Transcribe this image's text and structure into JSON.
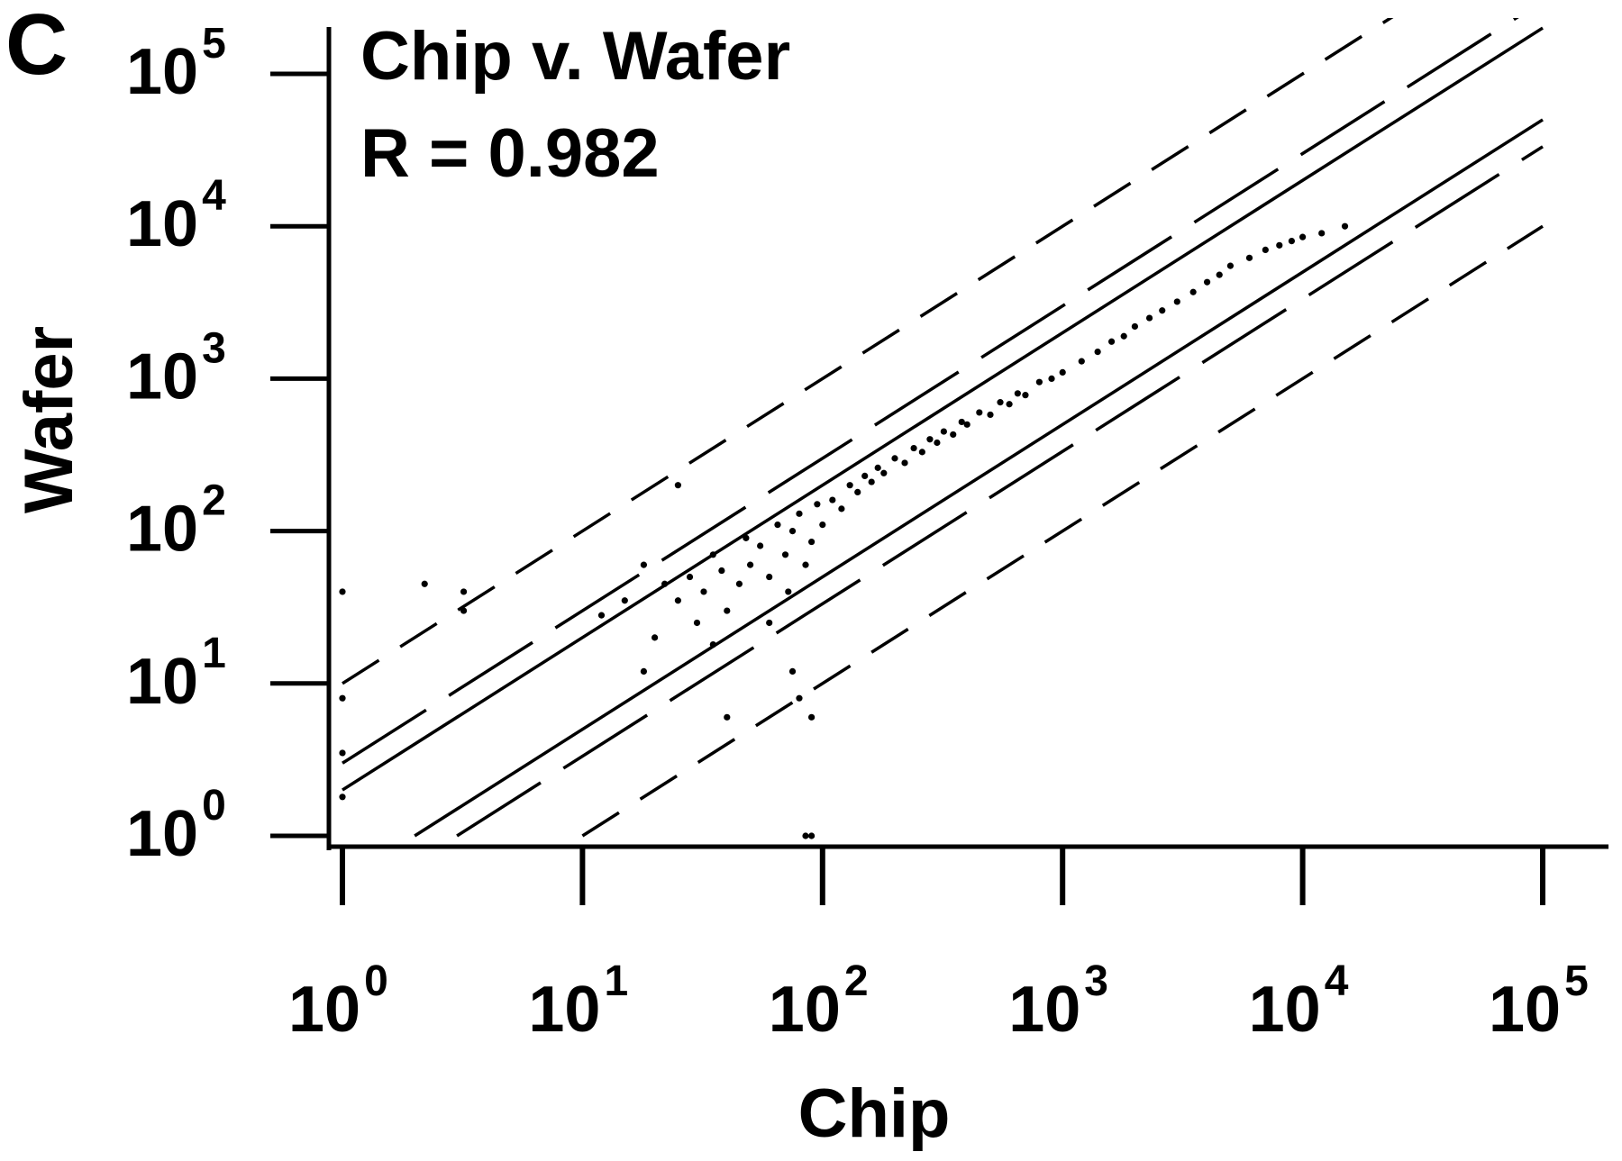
{
  "panel_label": "C",
  "chart_data": {
    "type": "scatter",
    "title": "Chip v. Wafer",
    "annotation": "R = 0.982",
    "xlabel": "Chip",
    "ylabel": "Wafer",
    "xscale": "log",
    "yscale": "log",
    "xlim": [
      1,
      100000
    ],
    "ylim": [
      1,
      100000
    ],
    "grid": false,
    "ticks": [
      {
        "base": "10",
        "exp": "0",
        "value": 1
      },
      {
        "base": "10",
        "exp": "1",
        "value": 10
      },
      {
        "base": "10",
        "exp": "2",
        "value": 100
      },
      {
        "base": "10",
        "exp": "3",
        "value": 1000
      },
      {
        "base": "10",
        "exp": "4",
        "value": 10000
      },
      {
        "base": "10",
        "exp": "5",
        "value": 100000
      }
    ],
    "reference_lines": [
      {
        "style": "solid",
        "fold": 2,
        "x": [
          1,
          100000
        ],
        "y": [
          2,
          200000
        ]
      },
      {
        "style": "solid",
        "fold": 0.5,
        "x": [
          2,
          100000
        ],
        "y": [
          1,
          50000
        ]
      },
      {
        "style": "long-dash",
        "fold": 3,
        "x": [
          1,
          100000
        ],
        "y": [
          3,
          300000
        ]
      },
      {
        "style": "long-dash",
        "fold": 0.333,
        "x": [
          3,
          100000
        ],
        "y": [
          1,
          33300
        ]
      },
      {
        "style": "short-dash",
        "fold": 10,
        "x": [
          1,
          100000
        ],
        "y": [
          10,
          1000000
        ]
      },
      {
        "style": "short-dash",
        "fold": 0.1,
        "x": [
          10,
          100000
        ],
        "y": [
          1,
          10000
        ]
      }
    ],
    "series": [
      {
        "points": [
          [
            1.0,
            40
          ],
          [
            1.0,
            3.5
          ],
          [
            1.0,
            1.8
          ],
          [
            1.0,
            8
          ],
          [
            2.2,
            45
          ],
          [
            3.2,
            40
          ],
          [
            3.2,
            30
          ],
          [
            12,
            28
          ],
          [
            15,
            35
          ],
          [
            18,
            60
          ],
          [
            18,
            12
          ],
          [
            20,
            20
          ],
          [
            22,
            45
          ],
          [
            25,
            35
          ],
          [
            25,
            200
          ],
          [
            28,
            50
          ],
          [
            30,
            25
          ],
          [
            32,
            40
          ],
          [
            35,
            18
          ],
          [
            35,
            70
          ],
          [
            38,
            55
          ],
          [
            40,
            30
          ],
          [
            40,
            6
          ],
          [
            45,
            45
          ],
          [
            48,
            90
          ],
          [
            50,
            60
          ],
          [
            55,
            80
          ],
          [
            60,
            50
          ],
          [
            60,
            25
          ],
          [
            65,
            110
          ],
          [
            70,
            70
          ],
          [
            72,
            40
          ],
          [
            75,
            100
          ],
          [
            80,
            130
          ],
          [
            85,
            60
          ],
          [
            90,
            85
          ],
          [
            95,
            150
          ],
          [
            100,
            110
          ],
          [
            80,
            8
          ],
          [
            75,
            12
          ],
          [
            90,
            6
          ],
          [
            110,
            160
          ],
          [
            120,
            140
          ],
          [
            130,
            200
          ],
          [
            140,
            180
          ],
          [
            150,
            230
          ],
          [
            160,
            210
          ],
          [
            170,
            260
          ],
          [
            180,
            240
          ],
          [
            200,
            300
          ],
          [
            220,
            280
          ],
          [
            240,
            350
          ],
          [
            260,
            330
          ],
          [
            280,
            400
          ],
          [
            300,
            380
          ],
          [
            320,
            450
          ],
          [
            350,
            430
          ],
          [
            380,
            520
          ],
          [
            400,
            500
          ],
          [
            450,
            600
          ],
          [
            500,
            580
          ],
          [
            550,
            700
          ],
          [
            600,
            680
          ],
          [
            650,
            800
          ],
          [
            700,
            780
          ],
          [
            800,
            950
          ],
          [
            900,
            1000
          ],
          [
            1000,
            1100
          ],
          [
            1200,
            1300
          ],
          [
            1400,
            1500
          ],
          [
            1600,
            1750
          ],
          [
            1800,
            1900
          ],
          [
            2000,
            2200
          ],
          [
            2300,
            2500
          ],
          [
            2600,
            2800
          ],
          [
            3000,
            3200
          ],
          [
            3500,
            3700
          ],
          [
            4000,
            4300
          ],
          [
            4500,
            4800
          ],
          [
            5000,
            5500
          ],
          [
            6000,
            6200
          ],
          [
            7000,
            7000
          ],
          [
            8000,
            7500
          ],
          [
            9000,
            8000
          ],
          [
            10000,
            8500
          ],
          [
            12000,
            9000
          ],
          [
            15000,
            10000
          ],
          [
            85,
            1.0
          ],
          [
            90,
            1.0
          ]
        ]
      }
    ]
  }
}
